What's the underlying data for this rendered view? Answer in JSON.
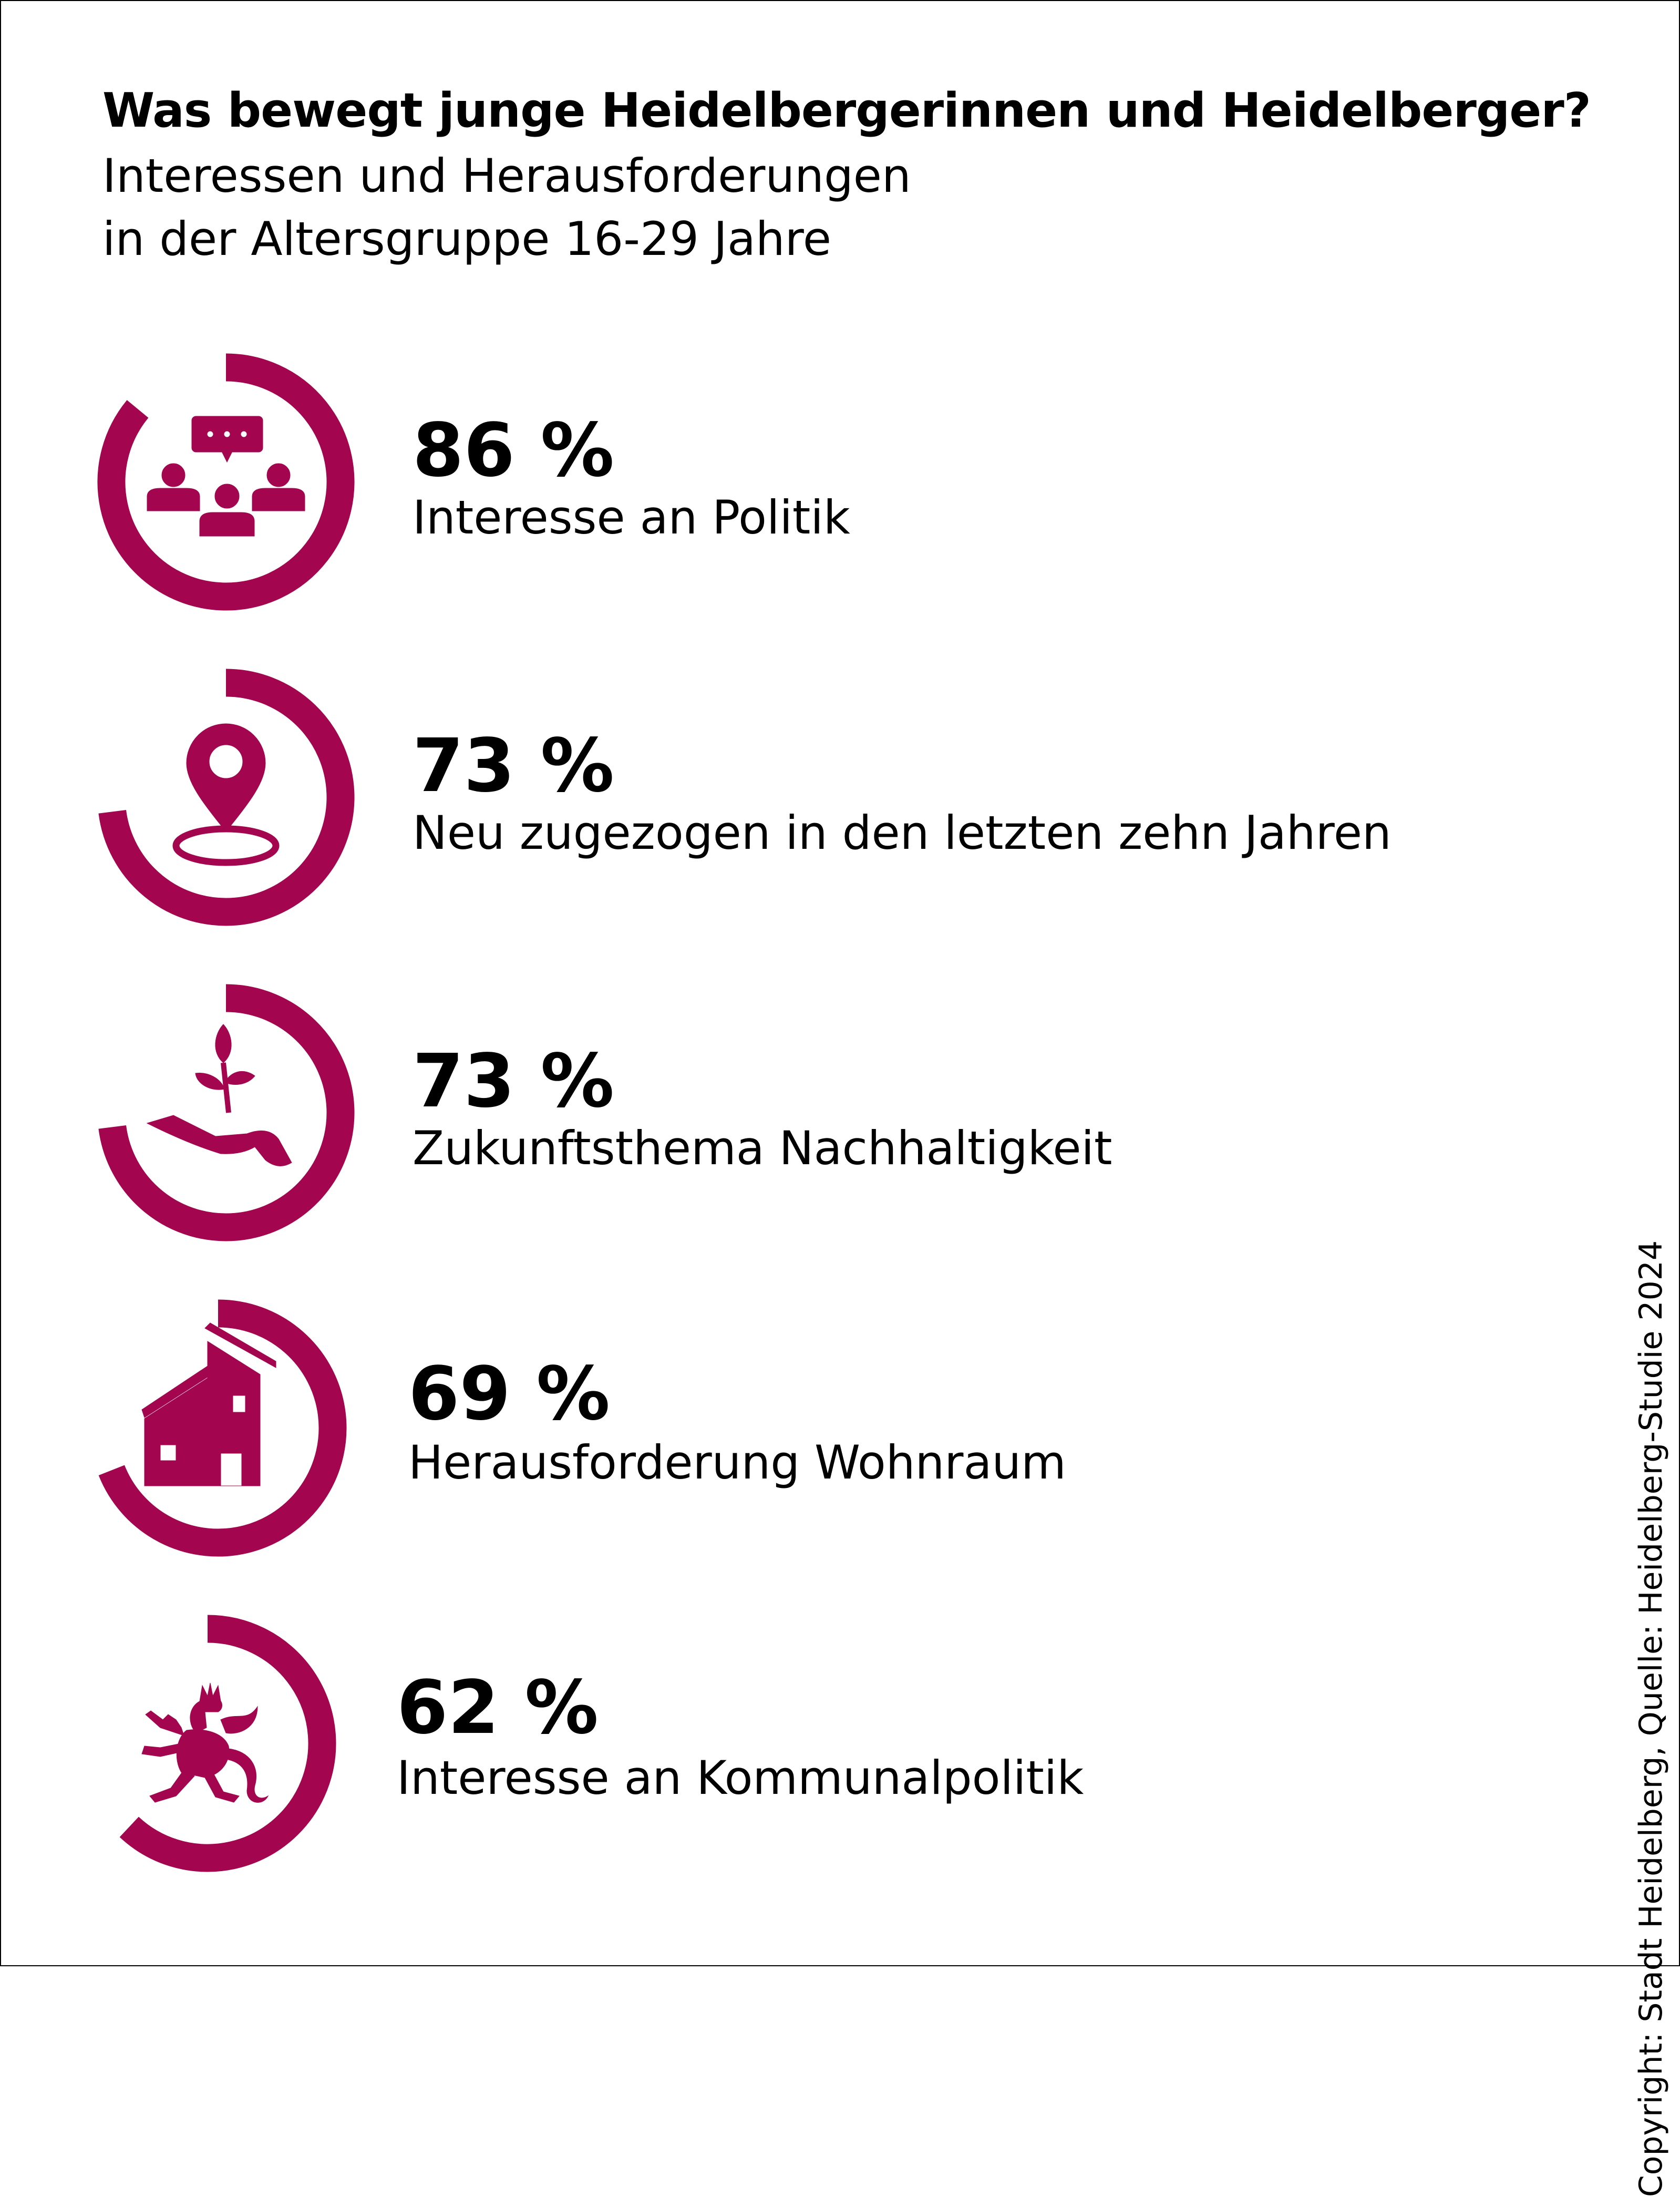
{
  "title": "Was bewegt junge Heidelbergerinnen und Heidelberger?",
  "subtitle_line1": "Interessen und Herausforderungen",
  "subtitle_line2": "in der Altersgruppe 16-29 Jahre",
  "copyright": "Copyright: Stadt Heidelberg, Quelle: Heidelberg-Studie 2024",
  "colors": {
    "accent": "#a3064f",
    "text": "#000000",
    "background": "#ffffff"
  },
  "chart_data": {
    "type": "donut",
    "unit": "%",
    "items": [
      {
        "value": 86,
        "value_label": "86 %",
        "label": "Interesse an Politik",
        "icon": "people-discussion-icon"
      },
      {
        "value": 73,
        "value_label": "73 %",
        "label": "Neu zugezogen in den letzten zehn Jahren",
        "icon": "location-pin-icon"
      },
      {
        "value": 73,
        "value_label": "73 %",
        "label": "Zukunftsthema Nachhaltigkeit",
        "icon": "hand-plant-icon"
      },
      {
        "value": 69,
        "value_label": "69 %",
        "label": "Herausforderung Wohnraum",
        "icon": "house-icon"
      },
      {
        "value": 62,
        "value_label": "62 %",
        "label": "Interesse an Kommunalpolitik",
        "icon": "heraldic-lion-icon"
      }
    ]
  }
}
